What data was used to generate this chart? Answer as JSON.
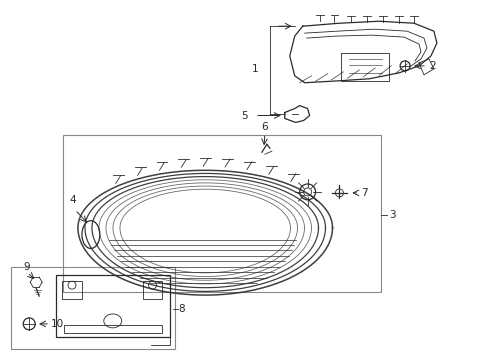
{
  "bg_color": "#ffffff",
  "line_color": "#2a2a2a",
  "fig_w": 4.89,
  "fig_h": 3.6,
  "dpi": 100
}
